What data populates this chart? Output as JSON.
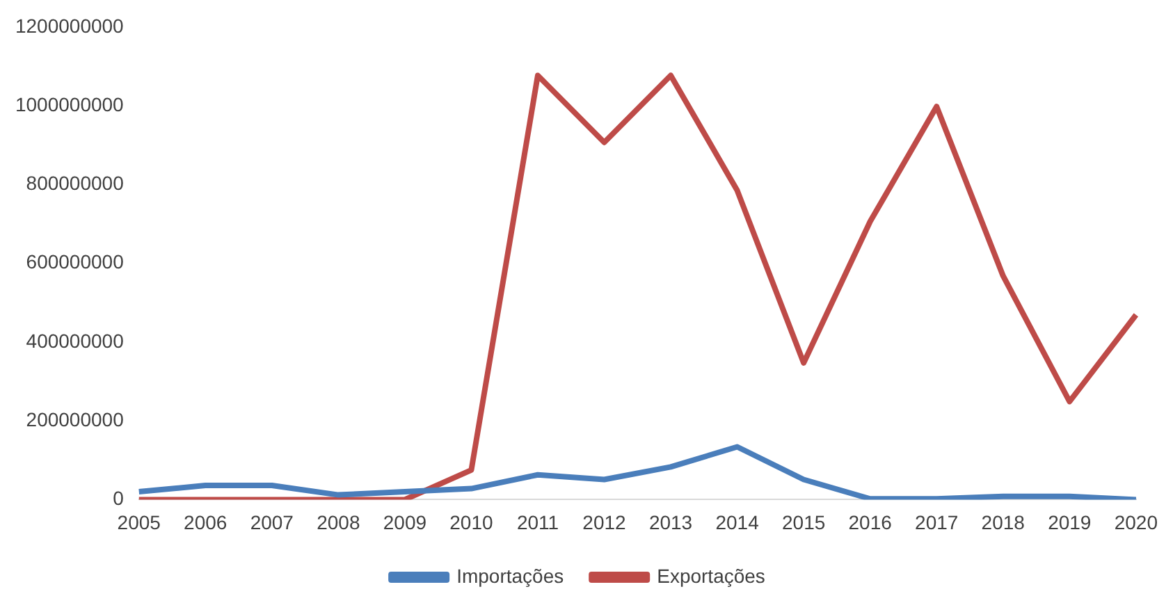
{
  "chart_data": {
    "type": "line",
    "categories": [
      "2005",
      "2006",
      "2007",
      "2008",
      "2009",
      "2010",
      "2011",
      "2012",
      "2013",
      "2014",
      "2015",
      "2016",
      "2017",
      "2018",
      "2019",
      "2020"
    ],
    "series": [
      {
        "name": "Importações",
        "color": "#4a7ebb",
        "values": [
          20000000,
          36000000,
          36000000,
          12000000,
          20000000,
          28000000,
          63000000,
          51000000,
          83000000,
          134000000,
          51000000,
          2000000,
          2000000,
          8000000,
          8000000,
          0
        ]
      },
      {
        "name": "Exportações",
        "color": "#be4b48",
        "values": [
          0,
          0,
          0,
          0,
          0,
          75000000,
          1077000000,
          907000000,
          1077000000,
          785000000,
          347000000,
          706000000,
          998000000,
          568000000,
          249000000,
          469000000
        ]
      }
    ],
    "ylim": [
      0,
      1200000000
    ],
    "yticks": [
      0,
      200000000,
      400000000,
      600000000,
      800000000,
      1000000000,
      1200000000
    ],
    "grid": false,
    "legend": "bottom",
    "marker": "none",
    "line_style": "solid"
  }
}
